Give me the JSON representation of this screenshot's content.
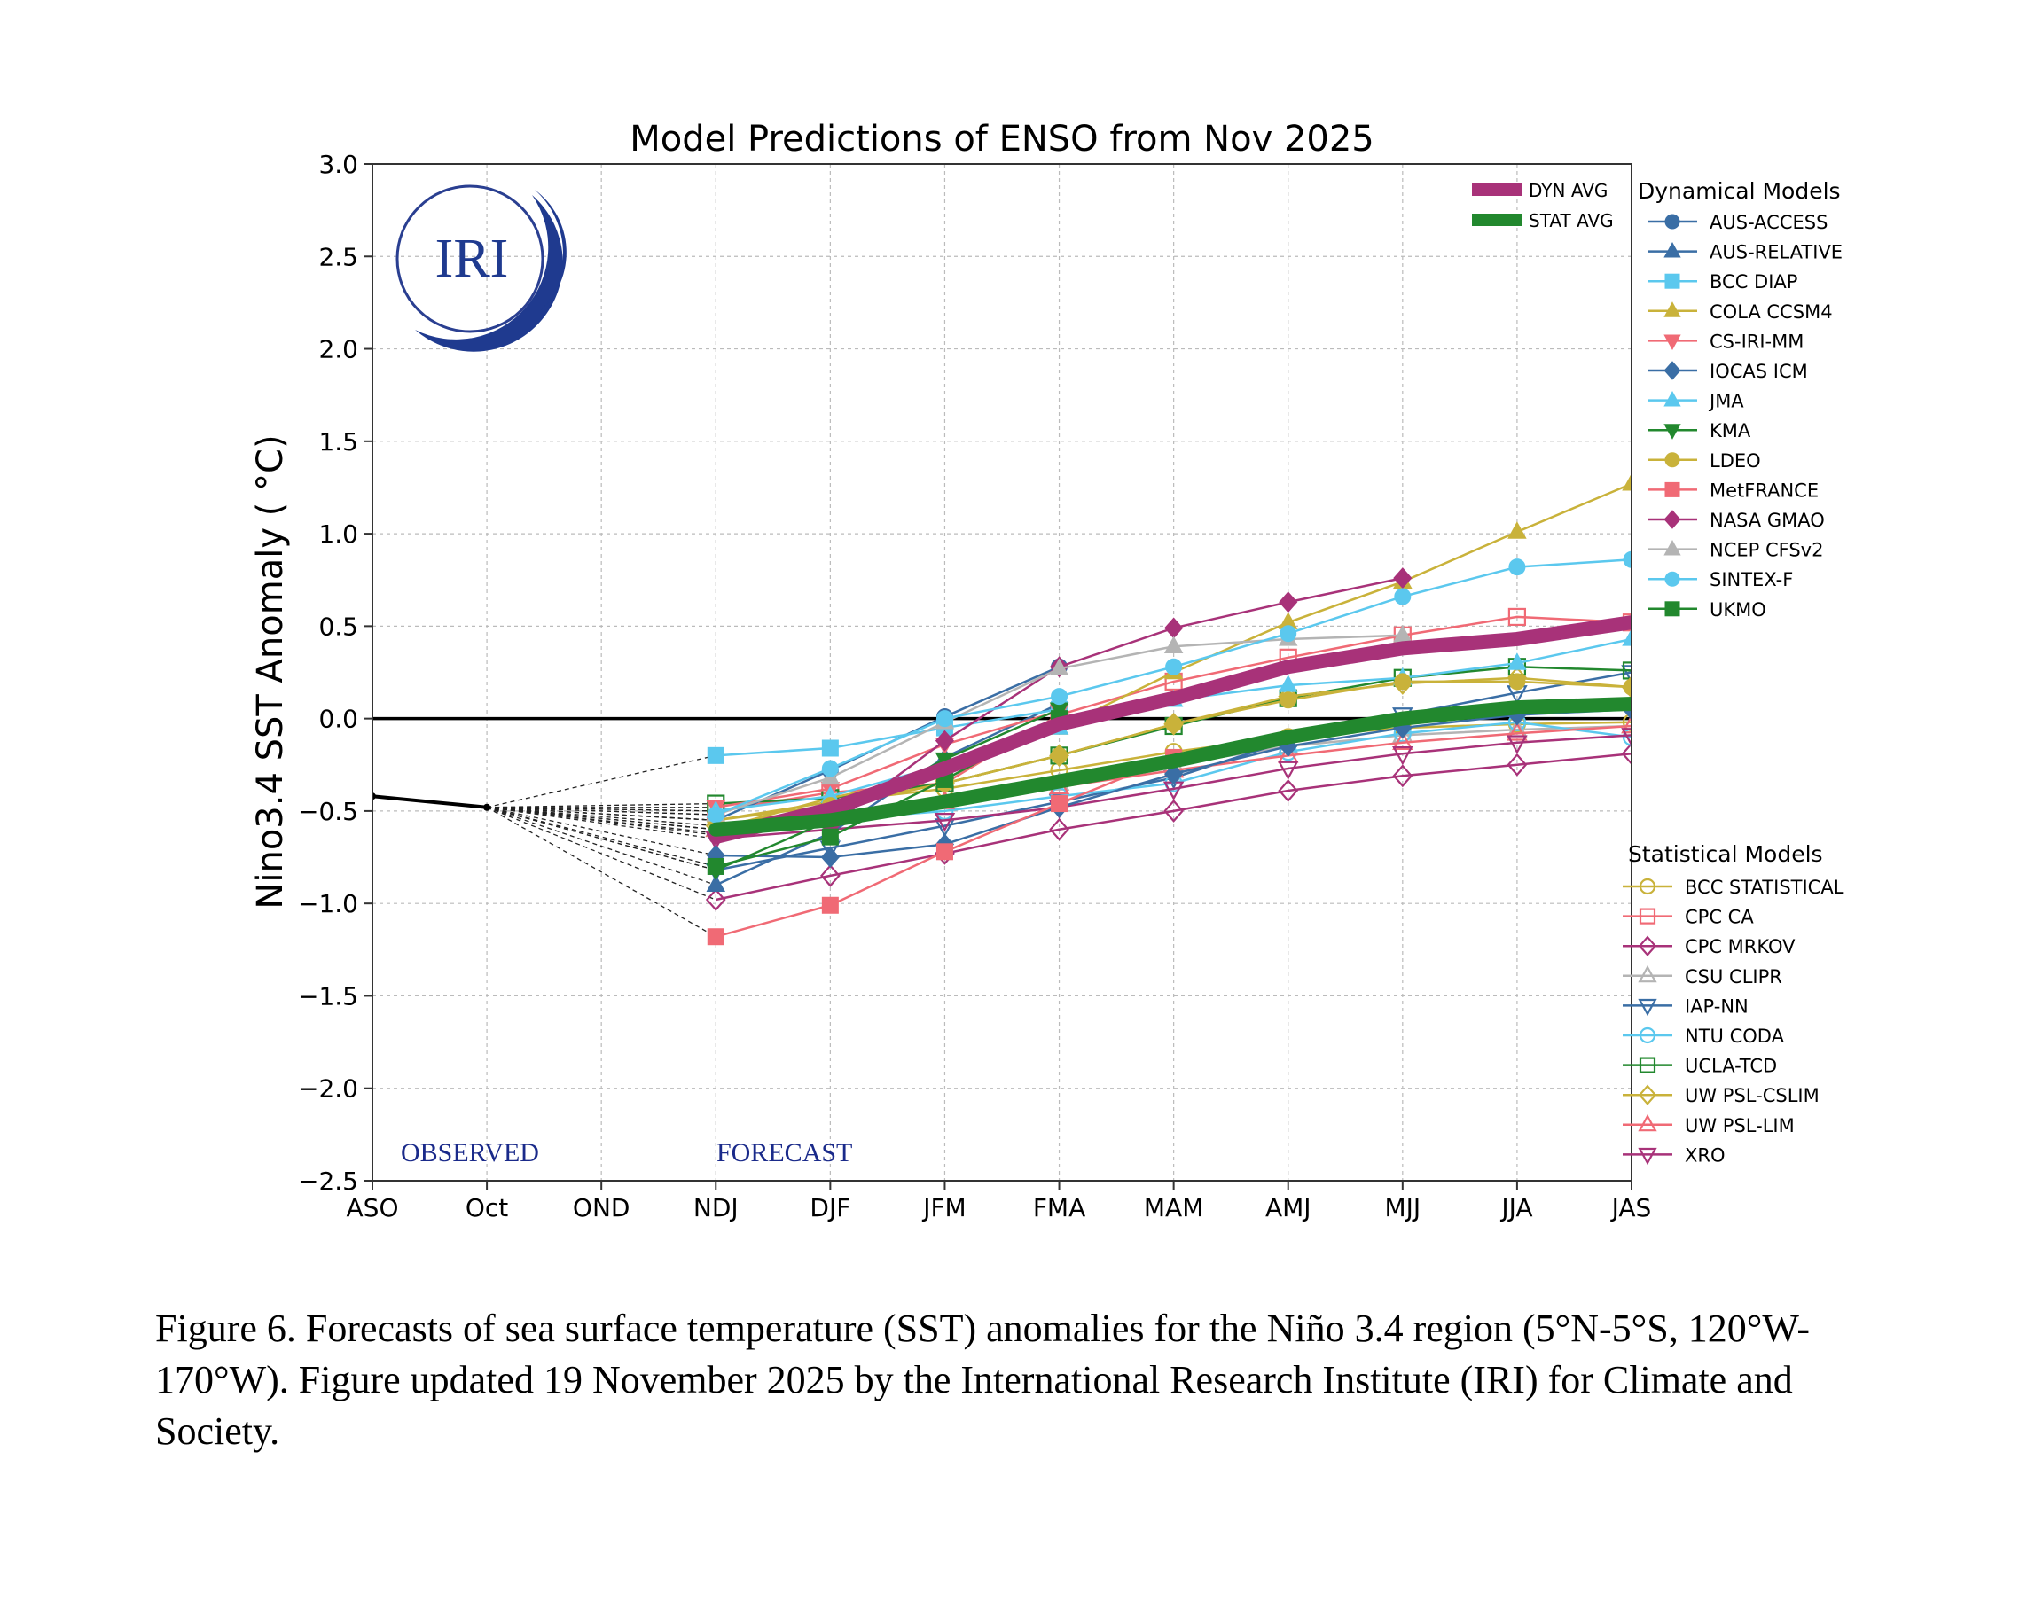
{
  "caption": "Figure 6. Forecasts of sea surface temperature (SST) anomalies for the Niño 3.4 region (5°N-5°S, 120°W-170°W). Figure updated 19 November 2025 by the International Research Institute (IRI) for Climate and Society.",
  "logo_text": "IRI",
  "chart_data": {
    "type": "line",
    "title": "Model Predictions of ENSO from Nov 2025",
    "ylabel": "Nino3.4 SST Anomaly ( °C)",
    "xlabel": "",
    "categories": [
      "ASO",
      "Oct",
      "OND",
      "NDJ",
      "DJF",
      "JFM",
      "FMA",
      "MAM",
      "AMJ",
      "MJJ",
      "JJA",
      "JAS"
    ],
    "ylim": [
      -2.5,
      3.0
    ],
    "yticks": [
      3.0,
      2.5,
      2.0,
      1.5,
      1.0,
      0.5,
      0.0,
      -0.5,
      -1.0,
      -1.5,
      -2.0,
      -2.5
    ],
    "ytick_labels": [
      "3.0",
      "2.5",
      "2.0",
      "1.5",
      "1.0",
      "0.5",
      "0.0",
      "−0.5",
      "−1.0",
      "−1.5",
      "−2.0",
      "−2.5"
    ],
    "grid": true,
    "annotations": {
      "observed": "OBSERVED",
      "forecast": "FORECAST"
    },
    "observed": {
      "x": [
        "ASO",
        "Oct"
      ],
      "values": [
        -0.42,
        -0.48
      ]
    },
    "legend_dynamical_title": "Dynamical Models",
    "legend_statistical_title": "Statistical Models",
    "averages": [
      {
        "name": "DYN AVG",
        "color": "#a83279",
        "values": [
          -0.64,
          -0.49,
          -0.27,
          -0.03,
          0.11,
          0.28,
          0.38,
          0.43,
          0.52
        ]
      },
      {
        "name": "STAT AVG",
        "color": "#22882e",
        "values": [
          -0.6,
          -0.55,
          -0.45,
          -0.34,
          -0.23,
          -0.1,
          0.0,
          0.06,
          0.08
        ]
      }
    ],
    "dynamical": [
      {
        "name": "AUS-ACCESS",
        "color": "#3a6ea5",
        "marker": "circle",
        "values": [
          -0.55,
          -0.28,
          0.01,
          0.28,
          null,
          null,
          null,
          null,
          null
        ]
      },
      {
        "name": "AUS-RELATIVE",
        "color": "#3a6ea5",
        "marker": "triangle",
        "values": [
          -0.9,
          -0.62,
          -0.21,
          0.08,
          null,
          null,
          null,
          null,
          null
        ]
      },
      {
        "name": "BCC DIAP",
        "color": "#5bc8ee",
        "marker": "square",
        "values": [
          -0.2,
          -0.16,
          -0.05,
          0.05,
          null,
          null,
          null,
          null,
          null
        ]
      },
      {
        "name": "COLA CCSM4",
        "color": "#c9b23a",
        "marker": "triangle",
        "values": [
          -0.6,
          -0.43,
          -0.3,
          -0.05,
          0.25,
          0.52,
          0.74,
          1.01,
          1.27
        ]
      },
      {
        "name": "CS-IRI-MM",
        "color": "#f06a75",
        "marker": "triangle-down",
        "values": [
          -0.48,
          -0.38,
          -0.14,
          0.04,
          null,
          null,
          null,
          null,
          null
        ]
      },
      {
        "name": "IOCAS ICM",
        "color": "#3a6ea5",
        "marker": "diamond",
        "values": [
          -0.74,
          -0.75,
          -0.68,
          -0.48,
          -0.3,
          -0.15,
          -0.05,
          0.02,
          0.05
        ]
      },
      {
        "name": "JMA",
        "color": "#5bc8ee",
        "marker": "triangle",
        "values": [
          -0.5,
          -0.42,
          -0.25,
          -0.05,
          0.1,
          0.18,
          0.22,
          0.3,
          0.43
        ]
      },
      {
        "name": "KMA",
        "color": "#22882e",
        "marker": "triangle-down",
        "values": [
          -0.82,
          -0.55,
          -0.22,
          0.05,
          null,
          null,
          null,
          null,
          null
        ]
      },
      {
        "name": "LDEO",
        "color": "#c9b23a",
        "marker": "circle",
        "values": [
          -0.55,
          -0.47,
          -0.35,
          -0.2,
          -0.03,
          0.1,
          0.2,
          0.2,
          0.17
        ]
      },
      {
        "name": "MetFRANCE",
        "color": "#f06a75",
        "marker": "square",
        "values": [
          -1.18,
          -1.01,
          -0.72,
          -0.46,
          -0.21,
          null,
          null,
          null,
          null
        ]
      },
      {
        "name": "NASA GMAO",
        "color": "#a83279",
        "marker": "diamond",
        "values": [
          -0.63,
          -0.58,
          -0.12,
          0.28,
          0.49,
          0.63,
          0.76,
          null,
          null
        ]
      },
      {
        "name": "NCEP CFSv2",
        "color": "#b4b4b4",
        "marker": "triangle",
        "values": [
          -0.52,
          -0.32,
          -0.02,
          0.27,
          0.39,
          0.43,
          0.45,
          null,
          null
        ]
      },
      {
        "name": "SINTEX-F",
        "color": "#5bc8ee",
        "marker": "circle",
        "values": [
          -0.52,
          -0.27,
          0.0,
          0.12,
          0.28,
          0.46,
          0.66,
          0.82,
          0.86
        ]
      },
      {
        "name": "UKMO",
        "color": "#22882e",
        "marker": "square",
        "values": [
          -0.8,
          -0.64,
          -0.33,
          0.0,
          null,
          null,
          null,
          null,
          null
        ]
      }
    ],
    "statistical": [
      {
        "name": "BCC STATISTICAL",
        "color": "#c9b23a",
        "marker": "circle-open",
        "values": [
          -0.55,
          -0.45,
          -0.38,
          -0.28,
          -0.18,
          -0.1,
          -0.05,
          -0.03,
          -0.02
        ]
      },
      {
        "name": "CPC CA",
        "color": "#f06a75",
        "marker": "square-open",
        "values": [
          -0.5,
          -0.4,
          -0.35,
          0.02,
          0.2,
          0.33,
          0.45,
          0.55,
          0.52
        ]
      },
      {
        "name": "CPC MRKOV",
        "color": "#a83279",
        "marker": "diamond-open",
        "values": [
          -0.98,
          -0.85,
          -0.73,
          -0.6,
          -0.5,
          -0.39,
          -0.31,
          -0.25,
          -0.19
        ]
      },
      {
        "name": "CSU CLIPR",
        "color": "#b4b4b4",
        "marker": "triangle-open",
        "values": [
          -0.6,
          -0.52,
          -0.45,
          -0.35,
          -0.25,
          -0.15,
          -0.09,
          -0.06,
          -0.04
        ]
      },
      {
        "name": "IAP-NN",
        "color": "#3a6ea5",
        "marker": "triangle-down-open",
        "values": [
          -0.82,
          -0.7,
          -0.58,
          -0.45,
          -0.32,
          -0.12,
          0.02,
          0.14,
          0.25
        ]
      },
      {
        "name": "NTU CODA",
        "color": "#5bc8ee",
        "marker": "circle-open",
        "values": [
          -0.62,
          -0.55,
          -0.5,
          -0.42,
          -0.35,
          -0.18,
          -0.08,
          -0.02,
          -0.1
        ]
      },
      {
        "name": "UCLA-TCD",
        "color": "#22882e",
        "marker": "square-open",
        "values": [
          -0.46,
          -0.43,
          -0.35,
          -0.2,
          -0.04,
          0.11,
          0.22,
          0.28,
          0.26
        ]
      },
      {
        "name": "UW PSL-CSLIM",
        "color": "#c9b23a",
        "marker": "diamond-open",
        "values": [
          -0.58,
          -0.48,
          -0.35,
          -0.2,
          -0.03,
          0.12,
          0.19,
          0.22,
          0.17
        ]
      },
      {
        "name": "UW PSL-LIM",
        "color": "#f06a75",
        "marker": "triangle-open",
        "values": [
          -0.6,
          -0.52,
          -0.45,
          -0.37,
          -0.28,
          -0.2,
          -0.13,
          -0.08,
          -0.04
        ]
      },
      {
        "name": "XRO",
        "color": "#a83279",
        "marker": "triangle-down-open",
        "values": [
          -0.65,
          -0.6,
          -0.55,
          -0.48,
          -0.38,
          -0.27,
          -0.19,
          -0.13,
          -0.09
        ]
      }
    ]
  }
}
